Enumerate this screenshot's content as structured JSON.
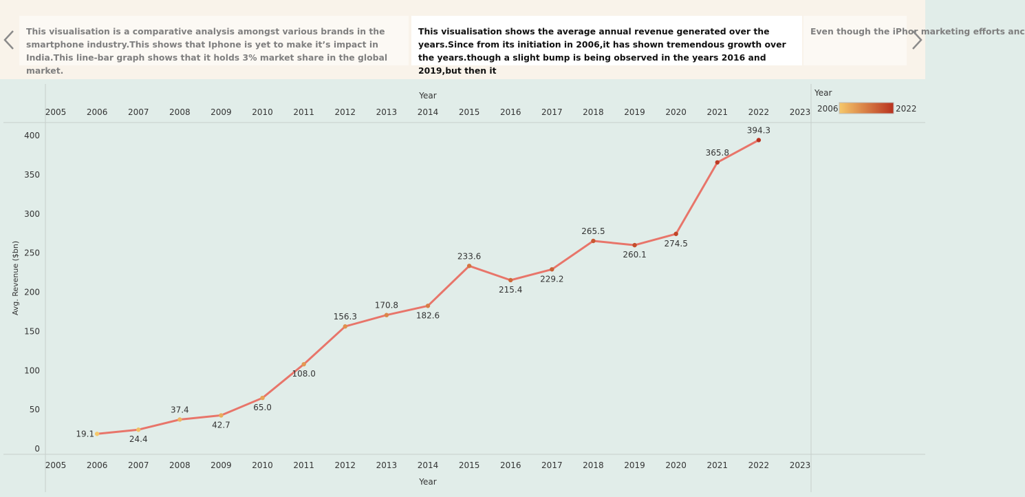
{
  "story": {
    "points": [
      {
        "text": "This visualisation is a comparative analysis amongst various brands in the smartphone industry.This shows that Iphone is yet to make it’s impact in India.This line-bar graph shows that it holds 3% market share in the global market.",
        "active": false
      },
      {
        "text": "This visualisation shows the  average annual revenue generated over the years.Since from its initiation in 2006,it has shown tremendous growth over the years.though a slight bump is being observed in the years 2016 and 2019,but then it",
        "active": true
      },
      {
        "text": "Even though the iPhor marketing efforts anc",
        "active": false
      }
    ],
    "prev_icon": "chevron-left-icon",
    "next_icon": "chevron-right-icon"
  },
  "legend": {
    "title": "Year",
    "min_label": "2006",
    "max_label": "2022",
    "color_start": "#f6c86a",
    "color_end": "#b8321f"
  },
  "chart_data": {
    "type": "line",
    "x": [
      2006,
      2007,
      2008,
      2009,
      2010,
      2011,
      2012,
      2013,
      2014,
      2015,
      2016,
      2017,
      2018,
      2019,
      2020,
      2021,
      2022
    ],
    "values": [
      19.1,
      24.4,
      37.4,
      42.7,
      65.0,
      108.0,
      156.3,
      170.8,
      182.6,
      233.6,
      215.4,
      229.2,
      265.5,
      260.1,
      274.5,
      365.8,
      394.3
    ],
    "labels": [
      "19.1",
      "24.4",
      "37.4",
      "42.7",
      "65.0",
      "108.0",
      "156.3",
      "170.8",
      "182.6",
      "233.6",
      "215.4",
      "229.2",
      "265.5",
      "260.1",
      "274.5",
      "365.8",
      "394.3"
    ],
    "label_position": [
      "left",
      "below",
      "above",
      "below",
      "below",
      "below",
      "above",
      "above",
      "below",
      "above",
      "below",
      "below",
      "above",
      "below",
      "below",
      "above",
      "above"
    ],
    "x_ticks": [
      "2005",
      "2006",
      "2007",
      "2008",
      "2009",
      "2010",
      "2011",
      "2012",
      "2013",
      "2014",
      "2015",
      "2016",
      "2017",
      "2018",
      "2019",
      "2020",
      "2021",
      "2022",
      "2023"
    ],
    "y_ticks": [
      "0",
      "50",
      "100",
      "150",
      "200",
      "250",
      "300",
      "350",
      "400"
    ],
    "xlabel": "Year",
    "ylabel": "Avg. Revenue ($bn)",
    "xlim": [
      2005,
      2023
    ],
    "ylim": [
      0,
      400
    ],
    "line_color": "#e8756a",
    "grid": false,
    "legend_position": "top-right"
  }
}
